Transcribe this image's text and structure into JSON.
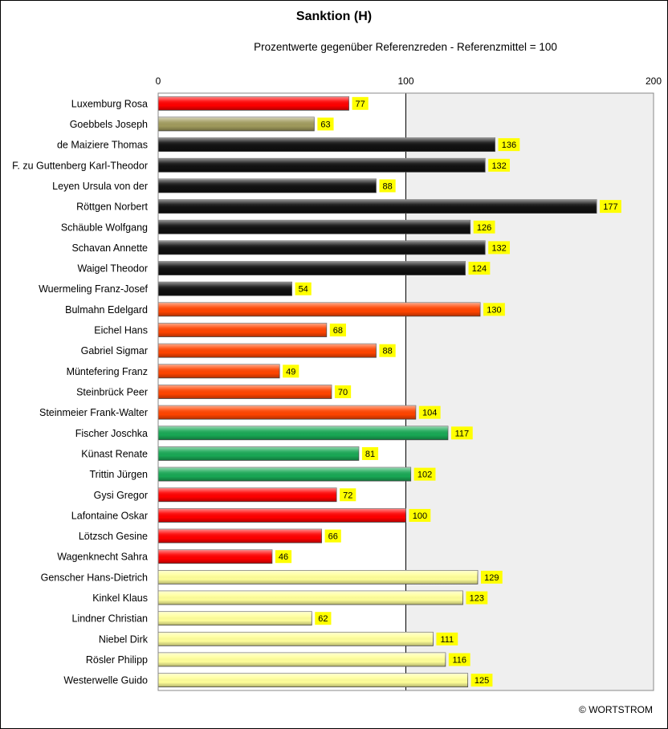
{
  "chart_data": {
    "type": "bar",
    "orientation": "horizontal",
    "title": "Sanktion (H)",
    "subtitle": "Prozentwerte  gegenüber Referenzreden - Referenzmittel = 100",
    "xlim": [
      0,
      200
    ],
    "xticks": [
      "0",
      "100",
      "200"
    ],
    "grid": true,
    "categories": [
      "Luxemburg Rosa",
      "Goebbels Joseph",
      "de Maiziere Thomas",
      "F. zu Guttenberg Karl-Theodor",
      "Leyen Ursula von der",
      "Röttgen Norbert",
      "Schäuble Wolfgang",
      "Schavan Annette",
      "Waigel Theodor",
      "Wuermeling Franz-Josef",
      "Bulmahn Edelgard",
      "Eichel Hans",
      "Gabriel Sigmar",
      "Müntefering Franz",
      "Steinbrück Peer",
      "Steinmeier Frank-Walter",
      "Fischer Joschka",
      "Künast Renate",
      "Trittin Jürgen",
      "Gysi Gregor",
      "Lafontaine Oskar",
      "Lötzsch Gesine",
      "Wagenknecht Sahra",
      "Genscher Hans-Dietrich",
      "Kinkel Klaus",
      "Lindner Christian",
      "Niebel Dirk",
      "Rösler Philipp",
      "Westerwelle Guido"
    ],
    "values": [
      77,
      63,
      136,
      132,
      88,
      177,
      126,
      132,
      124,
      54,
      130,
      68,
      88,
      49,
      70,
      104,
      117,
      81,
      102,
      72,
      100,
      66,
      46,
      129,
      123,
      62,
      111,
      116,
      125
    ],
    "bar_colors": [
      "#ff0000",
      "#a09a5c",
      "#111111",
      "#111111",
      "#111111",
      "#111111",
      "#111111",
      "#111111",
      "#111111",
      "#111111",
      "#ff4400",
      "#ff4400",
      "#ff4400",
      "#ff4400",
      "#ff4400",
      "#ff4400",
      "#19a855",
      "#19a855",
      "#19a855",
      "#ff0000",
      "#ff0000",
      "#ff0000",
      "#ff0000",
      "#ffff99",
      "#ffff99",
      "#ffff99",
      "#ffff99",
      "#ffff99",
      "#ffff99"
    ],
    "value_label_color": "#ffff00"
  },
  "credit": "© WORTSTROM"
}
